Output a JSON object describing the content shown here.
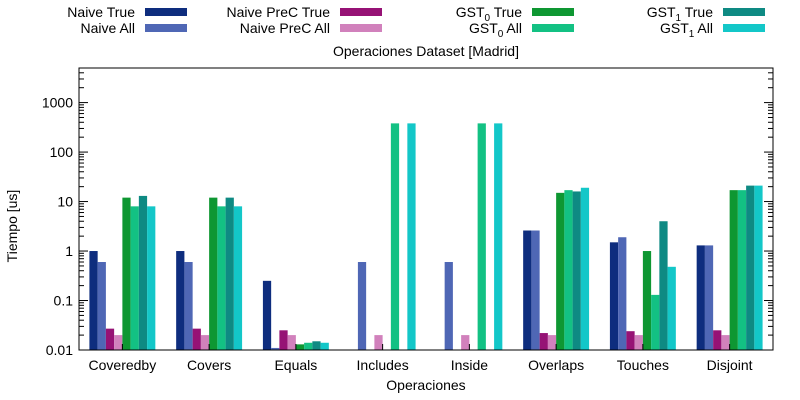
{
  "chart_data": {
    "type": "bar",
    "title": "Operaciones Dataset [Madrid]",
    "xlabel": "Operaciones",
    "ylabel": "Tiempo [us]",
    "yscale": "log",
    "ylim": [
      0.01,
      5000
    ],
    "yticks": [
      {
        "value": 0.01,
        "label": "0.01"
      },
      {
        "value": 0.1,
        "label": "0.1"
      },
      {
        "value": 1,
        "label": "1"
      },
      {
        "value": 10,
        "label": "10"
      },
      {
        "value": 100,
        "label": "100"
      },
      {
        "value": 1000,
        "label": "1000"
      }
    ],
    "grid": false,
    "legend": "top",
    "categories": [
      "Coveredby",
      "Covers",
      "Equals",
      "Includes",
      "Inside",
      "Overlaps",
      "Touches",
      "Disjoint"
    ],
    "series": [
      {
        "name": "Naive True",
        "color": "#0e2d7e",
        "values": [
          1.0,
          1.0,
          0.25,
          null,
          null,
          2.6,
          1.5,
          1.3
        ]
      },
      {
        "name": "Naive All",
        "color": "#4f67b5",
        "values": [
          0.6,
          0.6,
          0.011,
          0.6,
          0.6,
          2.6,
          1.9,
          1.3
        ]
      },
      {
        "name": "Naive PreC True",
        "color": "#961275",
        "values": [
          0.027,
          0.027,
          0.025,
          null,
          null,
          0.022,
          0.024,
          0.025
        ]
      },
      {
        "name": "Naive PreC All",
        "color": "#d181bc",
        "values": [
          0.02,
          0.02,
          0.02,
          0.02,
          0.02,
          0.02,
          0.02,
          0.02
        ]
      },
      {
        "name": "GST0 True",
        "color": "#0e9732",
        "values": [
          12,
          12,
          0.013,
          null,
          null,
          15,
          1.0,
          17
        ]
      },
      {
        "name": "GST0 All",
        "color": "#13c183",
        "values": [
          8,
          8,
          0.014,
          380,
          380,
          17,
          0.13,
          17
        ]
      },
      {
        "name": "GST1 True",
        "color": "#0e8a83",
        "values": [
          13,
          12,
          0.015,
          null,
          null,
          16,
          4.0,
          21
        ]
      },
      {
        "name": "GST1 All",
        "color": "#13c7c8",
        "values": [
          8,
          8,
          0.014,
          380,
          380,
          19,
          0.48,
          21
        ]
      }
    ],
    "legend_entries": [
      {
        "base": "Naive True",
        "sub": "",
        "rest": ""
      },
      {
        "base": "Naive All",
        "sub": "",
        "rest": ""
      },
      {
        "base": "Naive PreC True",
        "sub": "",
        "rest": ""
      },
      {
        "base": "Naive PreC All",
        "sub": "",
        "rest": ""
      },
      {
        "base": "GST",
        "sub": "0",
        "rest": " True"
      },
      {
        "base": "GST",
        "sub": "0",
        "rest": " All"
      },
      {
        "base": "GST",
        "sub": "1",
        "rest": " True"
      },
      {
        "base": "GST",
        "sub": "1",
        "rest": " All"
      }
    ]
  }
}
